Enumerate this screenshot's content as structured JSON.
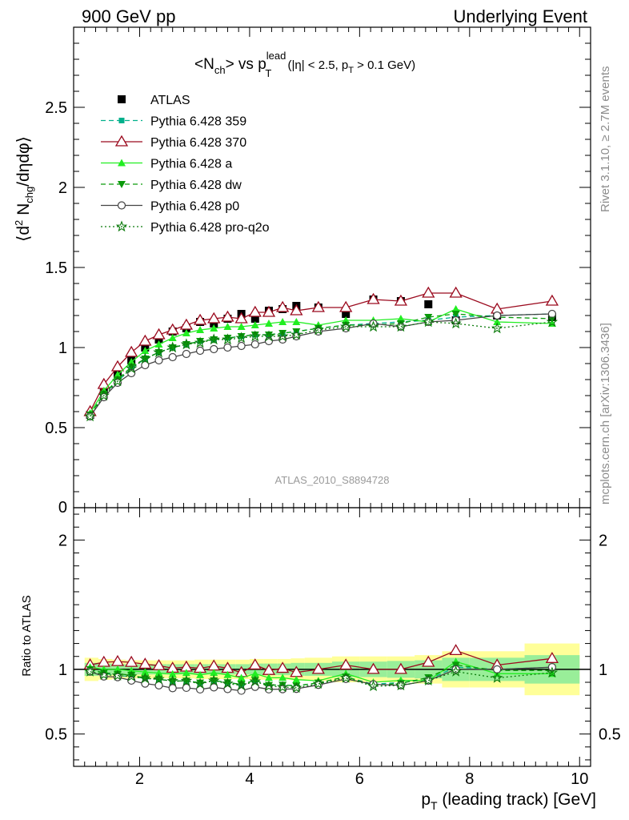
{
  "header": {
    "left": "900 GeV pp",
    "right": "Underlying Event"
  },
  "side": {
    "rivet": "Rivet 3.1.10, ≥ 2.7M events",
    "mcplots": "mcplots.cern.ch [arXiv:1306.3436]"
  },
  "plot_title": {
    "main": "<N",
    "main_sub": "ch",
    "mid": "> vs p",
    "mid_sup": "lead",
    "mid_sub": "T",
    "cut1": " (|η| < 2.5, p",
    "cut_sub": "T",
    "cut2": " > 0.1 GeV)"
  },
  "watermark": "ATLAS_2010_S8894728",
  "colors": {
    "atlas": "#000000",
    "p359": "#00b08c",
    "p370": "#9b0a1e",
    "pa": "#22ee22",
    "pdw": "#0a9a0a",
    "pp0": "#444444",
    "pq2o": "#0a7a0a",
    "band_outer": "#ffff99",
    "band_inner": "#99ee99"
  },
  "chart_data": [
    {
      "type": "line",
      "panel": "main",
      "ylabel": "⟨d² N_chg/dηdφ⟩",
      "xlim": [
        0.8,
        10.2
      ],
      "ylim": [
        0,
        3.0
      ],
      "yticks": [
        "0.5",
        "1",
        "1.5",
        "2",
        "2.5"
      ],
      "legend_position": "top-left",
      "x": [
        1.1,
        1.35,
        1.6,
        1.85,
        2.1,
        2.35,
        2.6,
        2.85,
        3.1,
        3.35,
        3.6,
        3.85,
        4.1,
        4.35,
        4.6,
        4.85,
        5.25,
        5.75,
        6.25,
        6.75,
        7.25,
        7.75,
        8.5,
        9.5
      ],
      "series": [
        {
          "name": "ATLAS",
          "key": "atlas",
          "values": [
            0.58,
            0.73,
            0.83,
            0.92,
            1.0,
            1.05,
            1.1,
            1.12,
            1.16,
            1.15,
            1.18,
            1.21,
            1.18,
            1.23,
            1.24,
            1.26,
            1.25,
            1.21,
            1.3,
            1.29,
            1.27,
            1.17,
            1.2,
            1.19
          ]
        },
        {
          "name": "Pythia 6.428 359",
          "key": "p359",
          "values": [
            0.58,
            0.71,
            0.79,
            0.87,
            0.93,
            0.97,
            1.0,
            1.02,
            1.04,
            1.05,
            1.06,
            1.07,
            1.08,
            1.08,
            1.09,
            1.1,
            1.12,
            1.14,
            1.15,
            1.16,
            1.17,
            1.19,
            1.2,
            1.21
          ]
        },
        {
          "name": "Pythia 6.428 370",
          "key": "p370",
          "values": [
            0.6,
            0.77,
            0.88,
            0.97,
            1.04,
            1.08,
            1.11,
            1.14,
            1.17,
            1.18,
            1.19,
            1.18,
            1.22,
            1.22,
            1.25,
            1.23,
            1.25,
            1.25,
            1.3,
            1.29,
            1.34,
            1.34,
            1.24,
            1.29
          ]
        },
        {
          "name": "Pythia 6.428 a",
          "key": "pa",
          "values": [
            0.59,
            0.73,
            0.83,
            0.91,
            0.98,
            1.02,
            1.06,
            1.09,
            1.11,
            1.12,
            1.13,
            1.13,
            1.14,
            1.15,
            1.16,
            1.16,
            1.14,
            1.17,
            1.17,
            1.18,
            1.16,
            1.24,
            1.16,
            1.15
          ]
        },
        {
          "name": "Pythia 6.428 dw",
          "key": "pdw",
          "values": [
            0.58,
            0.71,
            0.8,
            0.88,
            0.93,
            0.97,
            1.0,
            1.02,
            1.04,
            1.05,
            1.06,
            1.07,
            1.08,
            1.08,
            1.09,
            1.1,
            1.12,
            1.14,
            1.14,
            1.15,
            1.19,
            1.21,
            1.19,
            1.18
          ]
        },
        {
          "name": "Pythia 6.428 p0",
          "key": "pp0",
          "values": [
            0.57,
            0.69,
            0.78,
            0.84,
            0.89,
            0.92,
            0.94,
            0.96,
            0.98,
            0.99,
            1.0,
            1.01,
            1.02,
            1.04,
            1.05,
            1.07,
            1.1,
            1.12,
            1.15,
            1.13,
            1.16,
            1.17,
            1.2,
            1.21
          ]
        },
        {
          "name": "Pythia 6.428 pro-q2o",
          "key": "pq2o",
          "values": [
            0.57,
            0.7,
            0.79,
            0.87,
            0.93,
            0.97,
            1.0,
            1.02,
            1.03,
            1.05,
            1.05,
            1.06,
            1.07,
            1.07,
            1.07,
            1.08,
            1.11,
            1.13,
            1.13,
            1.13,
            1.16,
            1.15,
            1.12,
            1.16
          ]
        }
      ]
    },
    {
      "type": "line",
      "panel": "ratio",
      "ylabel": "Ratio to ATLAS",
      "xlabel": "p_T (leading track) [GeV]",
      "xlim": [
        0.8,
        10.2
      ],
      "ylim": [
        0.25,
        2.25
      ],
      "xticks": [
        "2",
        "4",
        "6",
        "8",
        "10"
      ],
      "yticks": [
        "0.5",
        "1",
        "2"
      ],
      "band_edges": [
        1.0,
        1.25,
        1.5,
        1.75,
        2.0,
        2.25,
        2.5,
        2.75,
        3.0,
        3.25,
        3.5,
        3.75,
        4.0,
        4.25,
        4.5,
        4.75,
        5.0,
        5.5,
        6.0,
        6.5,
        7.0,
        7.5,
        8.0,
        9.0,
        10.0
      ],
      "band_outer": [
        0.09,
        0.08,
        0.075,
        0.07,
        0.07,
        0.07,
        0.07,
        0.07,
        0.075,
        0.075,
        0.075,
        0.075,
        0.08,
        0.08,
        0.08,
        0.085,
        0.09,
        0.1,
        0.1,
        0.1,
        0.11,
        0.14,
        0.14,
        0.2
      ],
      "band_inner": [
        0.05,
        0.045,
        0.04,
        0.04,
        0.04,
        0.04,
        0.04,
        0.04,
        0.04,
        0.04,
        0.04,
        0.04,
        0.045,
        0.045,
        0.045,
        0.05,
        0.05,
        0.06,
        0.06,
        0.065,
        0.07,
        0.09,
        0.09,
        0.11
      ]
    }
  ]
}
